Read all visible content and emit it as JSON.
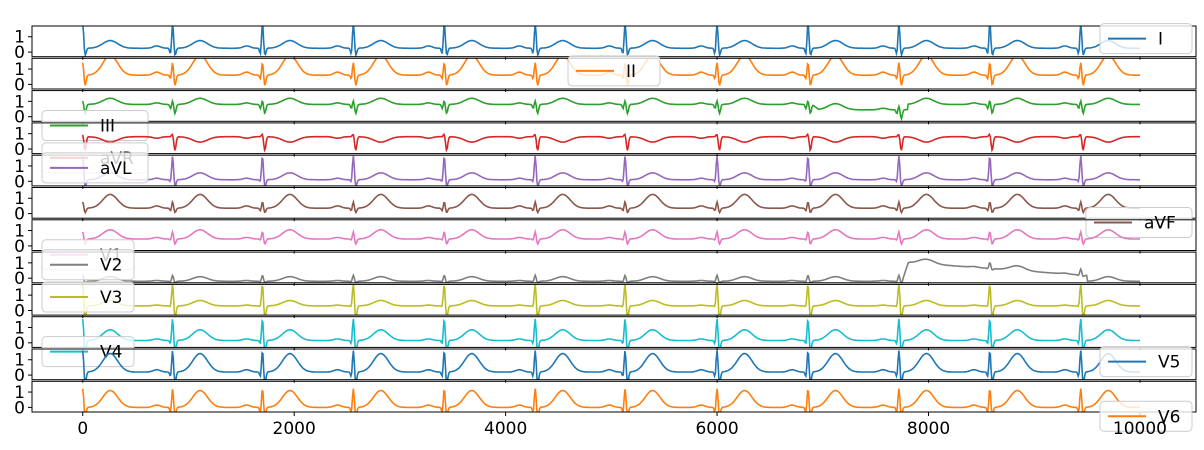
{
  "chart_data": {
    "type": "line",
    "x_range": [
      0,
      10000
    ],
    "x_ticks": [
      0,
      2000,
      4000,
      6000,
      8000,
      10000
    ],
    "x_tick_labels": [
      "0",
      "2000",
      "4000",
      "6000",
      "8000",
      "10000"
    ],
    "y_ticks": [
      0,
      1
    ],
    "y_tick_labels": [
      "0",
      "1"
    ],
    "grid": false,
    "beat_x": [
      0,
      850,
      1700,
      2560,
      3420,
      4280,
      5130,
      6000,
      6860,
      7720,
      8580,
      9440
    ],
    "series": [
      {
        "name": "I",
        "color": "#1f77b4",
        "legend": "upper-right",
        "ylim": [
          -0.3,
          1.7
        ],
        "shape": {
          "r": 1.7,
          "q": -0.5,
          "s": -0.5,
          "t": 0.5,
          "p": 0.15,
          "base": 0.25
        },
        "events": []
      },
      {
        "name": "II",
        "color": "#ff7f0e",
        "legend": "upper-center",
        "ylim": [
          -0.3,
          1.7
        ],
        "shape": {
          "r": 0.9,
          "q": -0.3,
          "s": -0.7,
          "t": 1.3,
          "p": 0.2,
          "base": 0.6
        },
        "events": []
      },
      {
        "name": "III",
        "color": "#2ca02c",
        "legend": "lower-left",
        "ylim": [
          -0.3,
          1.7
        ],
        "shape": {
          "r": 0.3,
          "q": -0.3,
          "s": -0.6,
          "t": 0.4,
          "p": 0.1,
          "base": 0.8
        },
        "events": [
          {
            "x0": 6900,
            "x1": 7800,
            "delta": -0.35
          }
        ]
      },
      {
        "name": "aVR",
        "color": "#d62728",
        "legend": "lower-left",
        "ylim": [
          -0.3,
          1.7
        ],
        "shape": {
          "r": 0.2,
          "q": 0.0,
          "s": -0.9,
          "t": -0.35,
          "p": -0.1,
          "base": 0.8
        },
        "events": []
      },
      {
        "name": "aVL",
        "color": "#9467bd",
        "legend": "upper-left",
        "ylim": [
          -0.3,
          1.7
        ],
        "shape": {
          "r": 1.6,
          "q": -0.2,
          "s": -0.5,
          "t": 0.45,
          "p": 0.1,
          "base": 0.1
        },
        "events": []
      },
      {
        "name": "aVF",
        "color": "#8c564b",
        "legend": "lower-right",
        "ylim": [
          -0.3,
          1.7
        ],
        "shape": {
          "r": 0.45,
          "q": -0.2,
          "s": -0.3,
          "t": 0.9,
          "p": 0.15,
          "base": 0.35
        },
        "events": []
      },
      {
        "name": "V1",
        "color": "#e377c2",
        "legend": "lower-left",
        "ylim": [
          -0.3,
          1.7
        ],
        "shape": {
          "r": 0.5,
          "q": -0.1,
          "s": -0.35,
          "t": 0.6,
          "p": 0.1,
          "base": 0.45
        },
        "events": []
      },
      {
        "name": "V2",
        "color": "#7f7f7f",
        "legend": "upper-left",
        "ylim": [
          -0.3,
          1.7
        ],
        "shape": {
          "r": 0.4,
          "q": -0.05,
          "s": -0.1,
          "t": 0.3,
          "p": 0.05,
          "base": -0.2
        },
        "events": [
          {
            "x0": 7750,
            "x1": 9500,
            "delta": 1.25,
            "decay": true
          }
        ]
      },
      {
        "name": "V3",
        "color": "#bcbd22",
        "legend": "upper-left",
        "ylim": [
          -0.3,
          1.7
        ],
        "shape": {
          "r": 1.5,
          "q": -0.1,
          "s": -0.9,
          "t": 0.35,
          "p": 0.05,
          "base": 0.3
        },
        "events": []
      },
      {
        "name": "V4",
        "color": "#17becf",
        "legend": "lower-left",
        "ylim": [
          -0.3,
          1.7
        ],
        "shape": {
          "r": 1.5,
          "q": -0.3,
          "s": -0.8,
          "t": 0.7,
          "p": 0.1,
          "base": 0.15
        },
        "events": []
      },
      {
        "name": "V5",
        "color": "#1f77b4",
        "legend": "upper-right",
        "ylim": [
          -0.3,
          1.7
        ],
        "shape": {
          "r": 1.5,
          "q": -0.4,
          "s": -0.8,
          "t": 1.2,
          "p": 0.15,
          "base": 0.2
        },
        "events": []
      },
      {
        "name": "V6",
        "color": "#ff7f0e",
        "legend": "lower-right",
        "ylim": [
          -0.3,
          1.7
        ],
        "shape": {
          "r": 1.3,
          "q": -0.4,
          "s": -0.6,
          "t": 1.1,
          "p": 0.15,
          "base": 0.0
        },
        "events": []
      }
    ]
  }
}
